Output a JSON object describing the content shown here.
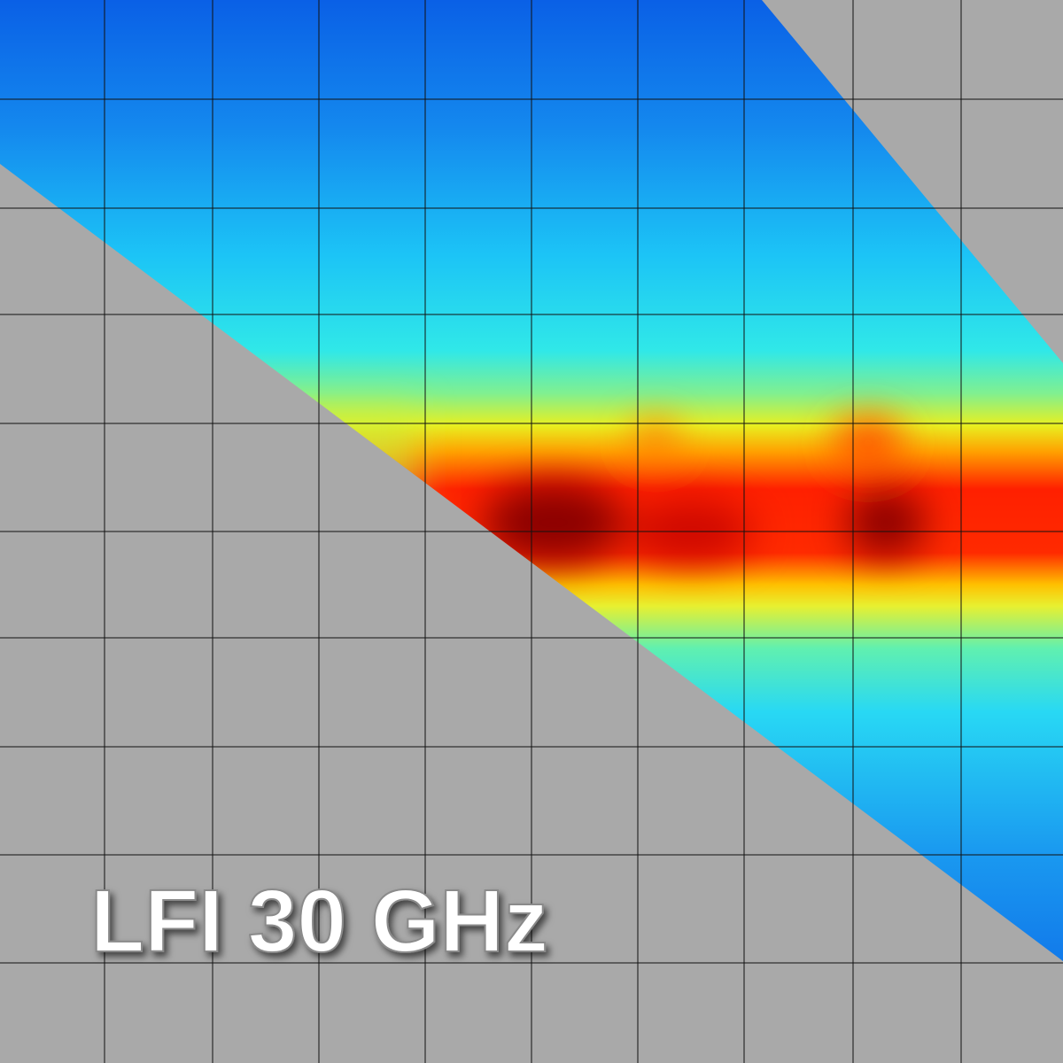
{
  "label": "LFI 30 GHz"
}
